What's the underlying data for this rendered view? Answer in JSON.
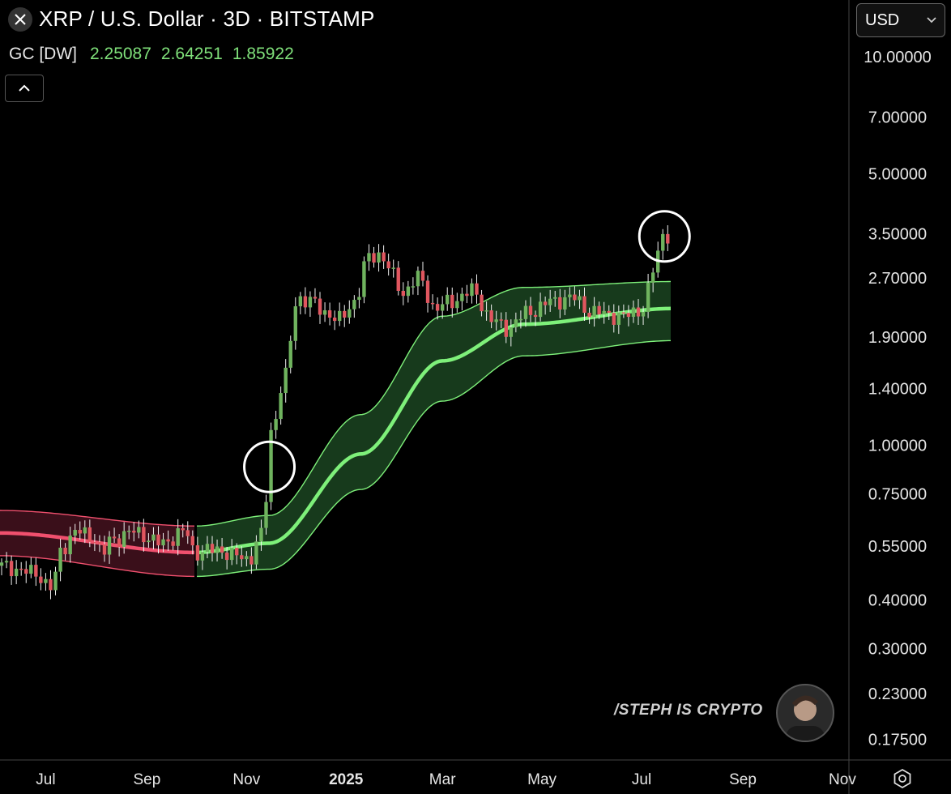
{
  "header": {
    "title": "XRP / U.S. Dollar · 3D · BITSTAMP",
    "indicator_name": "GC [DW]",
    "indicator_values": [
      "2.25087",
      "2.64251",
      "1.85922"
    ]
  },
  "currency_select": {
    "value": "USD"
  },
  "watermark": {
    "text": "/STEPH IS CRYPTO"
  },
  "icons": {
    "close": "close-icon",
    "collapse": "chevron-up-icon",
    "dropdown": "chevron-down-icon",
    "settings": "gear-icon"
  },
  "colors": {
    "up": "#6fb35e",
    "down": "#e0565f",
    "band_green": "#7ef07a",
    "band_red": "#f0506e",
    "fill_green": "#173a1c",
    "fill_red": "#3a0f1a"
  },
  "chart_data": {
    "type": "candlestick",
    "scale": "log",
    "ylim": [
      0.155,
      14.0
    ],
    "y_ticks": [
      "10.00000",
      "7.00000",
      "5.00000",
      "3.50000",
      "2.70000",
      "1.90000",
      "1.40000",
      "1.00000",
      "0.75000",
      "0.55000",
      "0.40000",
      "0.30000",
      "0.23000",
      "0.17500"
    ],
    "y_tick_values": [
      10,
      7,
      5,
      3.5,
      2.7,
      1.9,
      1.4,
      1.0,
      0.75,
      0.55,
      0.4,
      0.3,
      0.23,
      0.175
    ],
    "x_ticks": [
      "Jul",
      "Sep",
      "Nov",
      "2025",
      "Mar",
      "May",
      "Jul",
      "Sep",
      "Nov"
    ],
    "x_tick_dates": [
      "2024-07-01",
      "2024-09-01",
      "2024-11-01",
      "2025-01-01",
      "2025-03-01",
      "2025-05-01",
      "2025-07-01",
      "2025-09-01",
      "2025-11-01"
    ],
    "x_range": [
      "2024-06-03",
      "2025-11-05"
    ],
    "price_path": [
      [
        "2024-06-03",
        0.49
      ],
      [
        "2024-06-25",
        0.47
      ],
      [
        "2024-07-05",
        0.43
      ],
      [
        "2024-07-12",
        0.55
      ],
      [
        "2024-07-20",
        0.6
      ],
      [
        "2024-08-01",
        0.58
      ],
      [
        "2024-08-05",
        0.52
      ],
      [
        "2024-08-10",
        0.57
      ],
      [
        "2024-08-25",
        0.6
      ],
      [
        "2024-09-10",
        0.56
      ],
      [
        "2024-09-25",
        0.6
      ],
      [
        "2024-10-01",
        0.53
      ],
      [
        "2024-10-15",
        0.54
      ],
      [
        "2024-10-25",
        0.52
      ],
      [
        "2024-11-03",
        0.51
      ],
      [
        "2024-11-10",
        0.58
      ],
      [
        "2024-11-13",
        0.72
      ],
      [
        "2024-11-17",
        1.1
      ],
      [
        "2024-11-24",
        1.45
      ],
      [
        "2024-12-03",
        2.4
      ],
      [
        "2024-12-10",
        2.35
      ],
      [
        "2024-12-20",
        2.2
      ],
      [
        "2024-12-28",
        2.1
      ],
      [
        "2025-01-07",
        2.35
      ],
      [
        "2025-01-15",
        3.05
      ],
      [
        "2025-01-22",
        3.1
      ],
      [
        "2025-02-01",
        2.7
      ],
      [
        "2025-02-04",
        2.45
      ],
      [
        "2025-02-15",
        2.7
      ],
      [
        "2025-02-25",
        2.25
      ],
      [
        "2025-03-07",
        2.35
      ],
      [
        "2025-03-20",
        2.5
      ],
      [
        "2025-04-01",
        2.1
      ],
      [
        "2025-04-10",
        2.0
      ],
      [
        "2025-04-23",
        2.2
      ],
      [
        "2025-05-08",
        2.35
      ],
      [
        "2025-05-20",
        2.4
      ],
      [
        "2025-06-01",
        2.2
      ],
      [
        "2025-06-20",
        2.15
      ],
      [
        "2025-07-03",
        2.25
      ],
      [
        "2025-07-08",
        2.8
      ],
      [
        "2025-07-11",
        3.1
      ],
      [
        "2025-07-14",
        3.5
      ],
      [
        "2025-07-17",
        3.48
      ]
    ],
    "gc_band": {
      "break_date": "2024-10-01",
      "mid": [
        [
          "2024-06-03",
          0.595
        ],
        [
          "2024-10-01",
          0.53
        ],
        [
          "2024-11-15",
          0.56
        ],
        [
          "2025-01-10",
          0.95
        ],
        [
          "2025-03-01",
          1.65
        ],
        [
          "2025-04-20",
          2.05
        ],
        [
          "2025-07-20",
          2.25
        ]
      ],
      "upper": [
        [
          "2024-06-03",
          0.68
        ],
        [
          "2024-10-01",
          0.62
        ],
        [
          "2024-11-15",
          0.66
        ],
        [
          "2025-01-10",
          1.2
        ],
        [
          "2025-03-01",
          2.15
        ],
        [
          "2025-04-20",
          2.55
        ],
        [
          "2025-07-20",
          2.64
        ]
      ],
      "lower": [
        [
          "2024-06-03",
          0.52
        ],
        [
          "2024-10-01",
          0.46
        ],
        [
          "2024-11-15",
          0.48
        ],
        [
          "2025-01-10",
          0.77
        ],
        [
          "2025-03-01",
          1.3
        ],
        [
          "2025-04-20",
          1.7
        ],
        [
          "2025-07-20",
          1.86
        ]
      ]
    },
    "circle_highlights": [
      {
        "date": "2024-11-15",
        "price": 0.88
      },
      {
        "date": "2025-07-15",
        "price": 3.45
      }
    ]
  }
}
